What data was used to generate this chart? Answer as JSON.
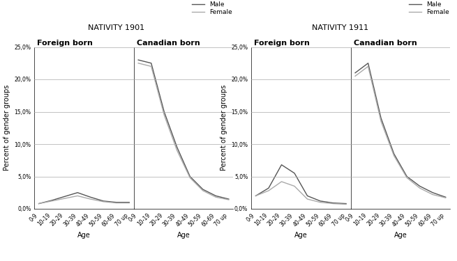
{
  "age_labels": [
    "0-9",
    "10-19",
    "20-29",
    "30-39",
    "40-49",
    "50-59",
    "60-69",
    "70 up"
  ],
  "nativity_1901": {
    "title": "NATIVITY 1901",
    "foreign_born": {
      "title": "Foreign born",
      "male": [
        0.8,
        1.3,
        1.9,
        2.5,
        1.8,
        1.2,
        1.0,
        1.0
      ],
      "female": [
        0.8,
        1.2,
        1.6,
        2.0,
        1.5,
        1.1,
        0.9,
        0.9
      ]
    },
    "canadian_born": {
      "title": "Canadian born",
      "male": [
        23.0,
        22.5,
        15.0,
        9.5,
        5.0,
        3.0,
        2.0,
        1.5
      ],
      "female": [
        22.5,
        22.0,
        14.5,
        9.0,
        4.8,
        2.8,
        1.8,
        1.4
      ]
    }
  },
  "nativity_1911": {
    "title": "NATIVITY 1911",
    "foreign_born": {
      "title": "Foreign born",
      "male": [
        2.0,
        3.2,
        6.8,
        5.5,
        2.0,
        1.2,
        0.9,
        0.8
      ],
      "female": [
        2.0,
        2.8,
        4.2,
        3.5,
        1.5,
        1.0,
        0.8,
        0.7
      ]
    },
    "canadian_born": {
      "title": "Canadian born",
      "male": [
        21.0,
        22.5,
        14.0,
        8.5,
        5.0,
        3.5,
        2.5,
        1.8
      ],
      "female": [
        20.5,
        22.0,
        13.5,
        8.2,
        4.8,
        3.2,
        2.2,
        1.7
      ]
    }
  },
  "ylim": [
    0,
    25
  ],
  "yticks": [
    0,
    5,
    10,
    15,
    20,
    25
  ],
  "ytick_labels": [
    "0,0%",
    "5,0%",
    "10,0%",
    "15,0%",
    "20,0%",
    "25,0%"
  ],
  "ylabel": "Percent of gender groups",
  "xlabel": "Age",
  "male_color": "#555555",
  "female_color": "#aaaaaa",
  "bg_color": "#ffffff",
  "grid_color": "#aaaaaa",
  "title_fontsize": 8,
  "subtitle_fontsize": 8,
  "tick_fontsize": 5.5,
  "label_fontsize": 7,
  "legend_fontsize": 6.5
}
